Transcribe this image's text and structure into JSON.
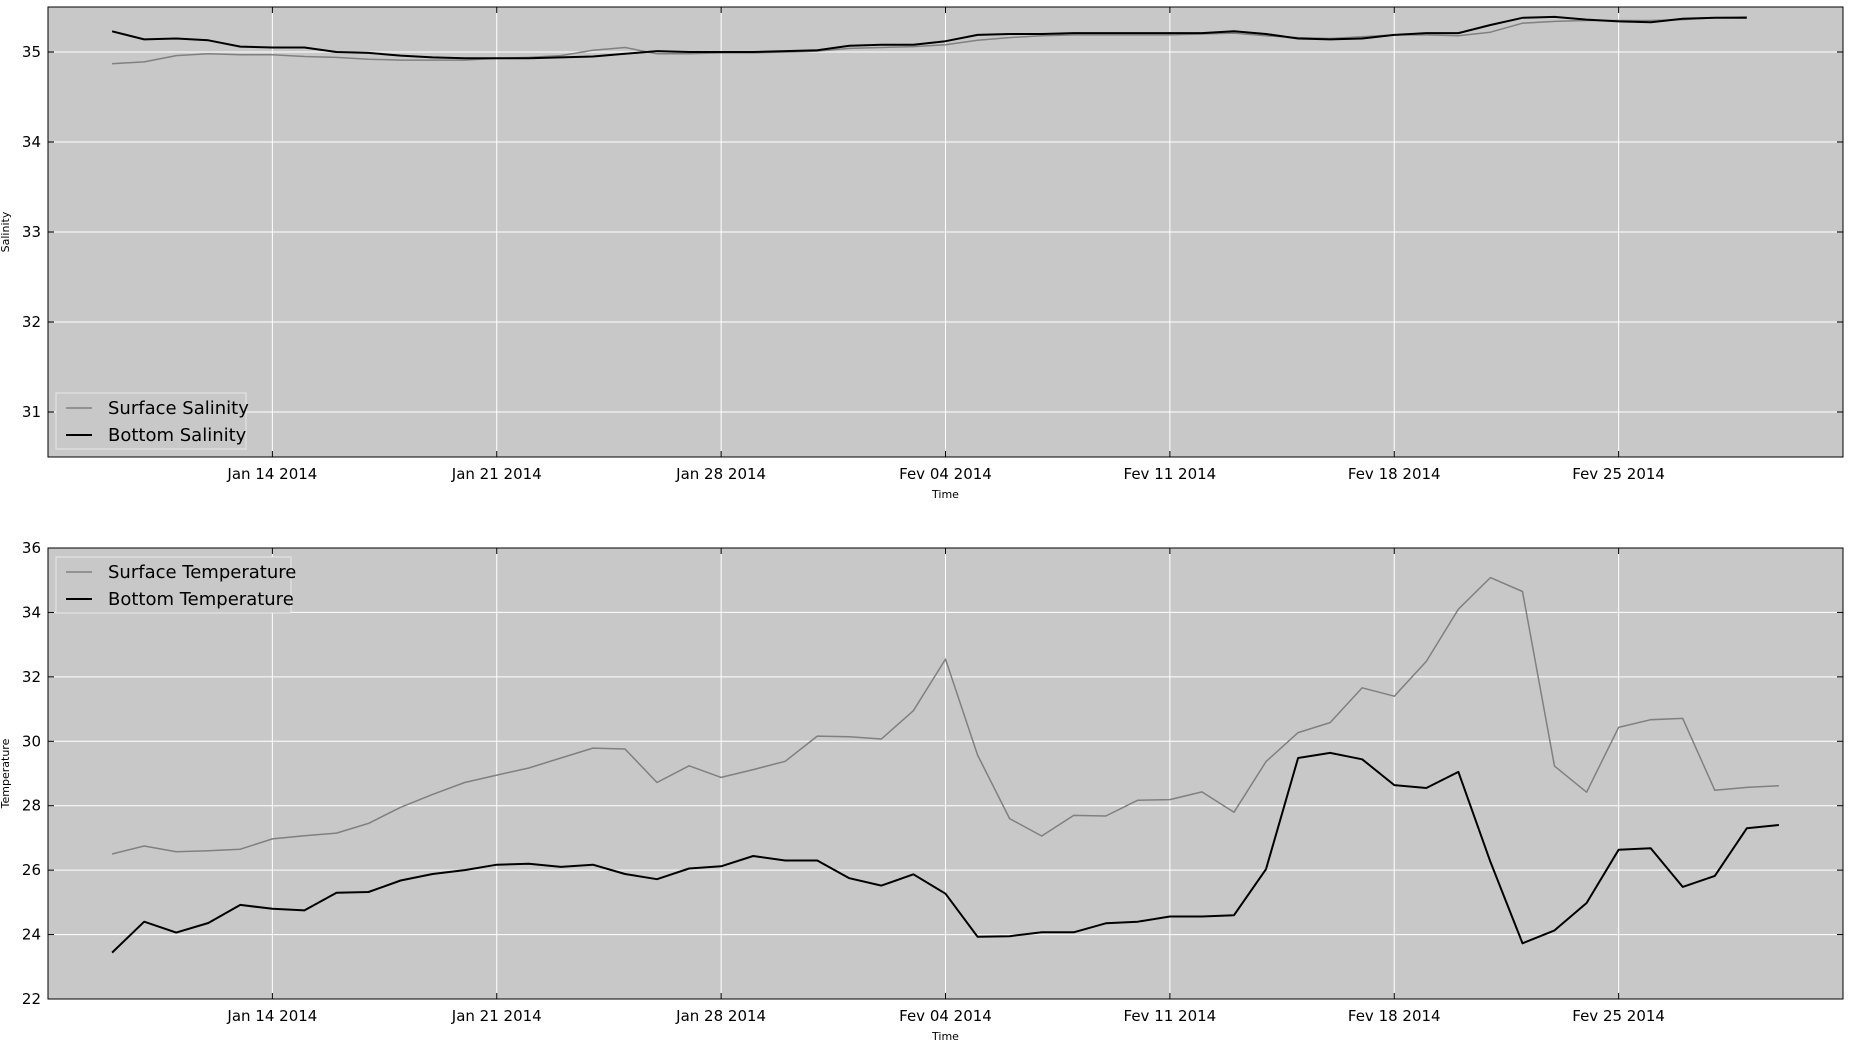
{
  "chart_data": [
    {
      "type": "line",
      "xlabel": "Time",
      "ylabel": "Salinity",
      "xlim": [
        "2014-01-07",
        "2014-03-04"
      ],
      "ylim": [
        30.5,
        35.5
      ],
      "yticks": [
        31,
        32,
        33,
        34,
        35
      ],
      "xticks": [
        "2014-01-14",
        "2014-01-21",
        "2014-01-28",
        "2014-02-04",
        "2014-02-11",
        "2014-02-18",
        "2014-02-25"
      ],
      "xtick_labels": [
        "Jan 14 2014",
        "Jan 21 2014",
        "Jan 28 2014",
        "Fev 04 2014",
        "Fev 11 2014",
        "Fev 18 2014",
        "Fev 25 2014"
      ],
      "grid": true,
      "legend_position": "lower-left",
      "x": [
        "2014-01-09",
        "2014-01-10",
        "2014-01-11",
        "2014-01-12",
        "2014-01-13",
        "2014-01-14",
        "2014-01-15",
        "2014-01-16",
        "2014-01-17",
        "2014-01-18",
        "2014-01-19",
        "2014-01-20",
        "2014-01-21",
        "2014-01-22",
        "2014-01-23",
        "2014-01-24",
        "2014-01-25",
        "2014-01-26",
        "2014-01-27",
        "2014-01-28",
        "2014-01-29",
        "2014-01-30",
        "2014-01-31",
        "2014-02-01",
        "2014-02-02",
        "2014-02-03",
        "2014-02-04",
        "2014-02-05",
        "2014-02-06",
        "2014-02-07",
        "2014-02-08",
        "2014-02-09",
        "2014-02-10",
        "2014-02-11",
        "2014-02-12",
        "2014-02-13",
        "2014-02-14",
        "2014-02-15",
        "2014-02-16",
        "2014-02-17",
        "2014-02-18",
        "2014-02-19",
        "2014-02-20",
        "2014-02-21",
        "2014-02-22",
        "2014-02-23",
        "2014-02-24",
        "2014-02-25",
        "2014-02-26",
        "2014-02-27",
        "2014-02-28",
        "2014-03-01"
      ],
      "series": [
        {
          "name": "Surface Salinity",
          "color": "#808080",
          "values": [
            34.87,
            34.89,
            34.96,
            34.98,
            34.97,
            34.97,
            34.95,
            34.94,
            34.92,
            34.91,
            34.91,
            34.91,
            34.93,
            34.94,
            34.96,
            35.02,
            35.05,
            34.98,
            34.98,
            34.99,
            34.99,
            35.0,
            35.01,
            35.04,
            35.05,
            35.06,
            35.08,
            35.13,
            35.16,
            35.18,
            35.19,
            35.19,
            35.19,
            35.19,
            35.2,
            35.21,
            35.18,
            35.16,
            35.15,
            35.17,
            35.19,
            35.19,
            35.18,
            35.22,
            35.32,
            35.34,
            35.35,
            35.35,
            35.35,
            35.36,
            35.38,
            35.39
          ]
        },
        {
          "name": "Bottom Salinity",
          "color": "#000000",
          "values": [
            35.23,
            35.14,
            35.15,
            35.13,
            35.06,
            35.05,
            35.05,
            35.0,
            34.99,
            34.96,
            34.94,
            34.93,
            34.93,
            34.93,
            34.94,
            34.95,
            34.98,
            35.01,
            35.0,
            35.0,
            35.0,
            35.01,
            35.02,
            35.07,
            35.08,
            35.08,
            35.12,
            35.19,
            35.2,
            35.2,
            35.21,
            35.21,
            35.21,
            35.21,
            35.21,
            35.23,
            35.2,
            35.15,
            35.14,
            35.15,
            35.19,
            35.21,
            35.21,
            35.3,
            35.38,
            35.39,
            35.36,
            35.34,
            35.33,
            35.37,
            35.38,
            35.38
          ]
        }
      ]
    },
    {
      "type": "line",
      "xlabel": "Time",
      "ylabel": "Temperature",
      "xlim": [
        "2014-01-07",
        "2014-03-04"
      ],
      "ylim": [
        22,
        36
      ],
      "yticks": [
        22,
        24,
        26,
        28,
        30,
        32,
        34,
        36
      ],
      "xticks": [
        "2014-01-14",
        "2014-01-21",
        "2014-01-28",
        "2014-02-04",
        "2014-02-11",
        "2014-02-18",
        "2014-02-25"
      ],
      "xtick_labels": [
        "Jan 14 2014",
        "Jan 21 2014",
        "Jan 28 2014",
        "Fev 04 2014",
        "Fev 11 2014",
        "Fev 18 2014",
        "Fev 25 2014"
      ],
      "grid": true,
      "legend_position": "upper-left",
      "x": [
        "2014-01-09",
        "2014-01-10",
        "2014-01-11",
        "2014-01-12",
        "2014-01-13",
        "2014-01-14",
        "2014-01-15",
        "2014-01-16",
        "2014-01-17",
        "2014-01-18",
        "2014-01-19",
        "2014-01-20",
        "2014-01-21",
        "2014-01-22",
        "2014-01-23",
        "2014-01-24",
        "2014-01-25",
        "2014-01-26",
        "2014-01-27",
        "2014-01-28",
        "2014-01-29",
        "2014-01-30",
        "2014-01-31",
        "2014-02-01",
        "2014-02-02",
        "2014-02-03",
        "2014-02-04",
        "2014-02-05",
        "2014-02-06",
        "2014-02-07",
        "2014-02-08",
        "2014-02-09",
        "2014-02-10",
        "2014-02-11",
        "2014-02-12",
        "2014-02-13",
        "2014-02-14",
        "2014-02-15",
        "2014-02-16",
        "2014-02-17",
        "2014-02-18",
        "2014-02-19",
        "2014-02-20",
        "2014-02-21",
        "2014-02-22",
        "2014-02-23",
        "2014-02-24",
        "2014-02-25",
        "2014-02-26",
        "2014-02-27",
        "2014-02-28",
        "2014-03-01",
        "2014-03-02"
      ],
      "series": [
        {
          "name": "Surface Temperature",
          "color": "#808080",
          "values": [
            26.5,
            26.75,
            26.57,
            26.6,
            26.65,
            26.97,
            27.07,
            27.15,
            27.45,
            27.95,
            28.35,
            28.72,
            28.95,
            29.17,
            29.48,
            29.79,
            29.76,
            28.72,
            29.24,
            28.88,
            29.12,
            29.38,
            30.16,
            30.14,
            30.07,
            30.95,
            32.55,
            29.57,
            27.6,
            27.06,
            27.7,
            27.68,
            28.17,
            28.19,
            28.43,
            27.8,
            29.37,
            30.27,
            30.58,
            31.66,
            31.4,
            32.48,
            34.1,
            35.08,
            34.65,
            29.23,
            28.42,
            30.43,
            30.67,
            30.71,
            28.48,
            28.57,
            28.62
          ]
        },
        {
          "name": "Bottom Temperature",
          "color": "#000000",
          "values": [
            23.44,
            24.4,
            24.06,
            24.36,
            24.92,
            24.8,
            24.75,
            25.3,
            25.32,
            25.68,
            25.88,
            26.0,
            26.17,
            26.2,
            26.1,
            26.17,
            25.88,
            25.72,
            26.05,
            26.12,
            26.44,
            26.3,
            26.3,
            25.75,
            25.52,
            25.87,
            25.27,
            23.93,
            23.95,
            24.07,
            24.07,
            24.35,
            24.4,
            24.56,
            24.56,
            24.6,
            26.03,
            29.48,
            29.64,
            29.44,
            28.64,
            28.55,
            29.05,
            26.26,
            23.73,
            24.13,
            24.98,
            26.63,
            26.68,
            25.48,
            25.82,
            27.3,
            27.4
          ]
        }
      ]
    }
  ]
}
